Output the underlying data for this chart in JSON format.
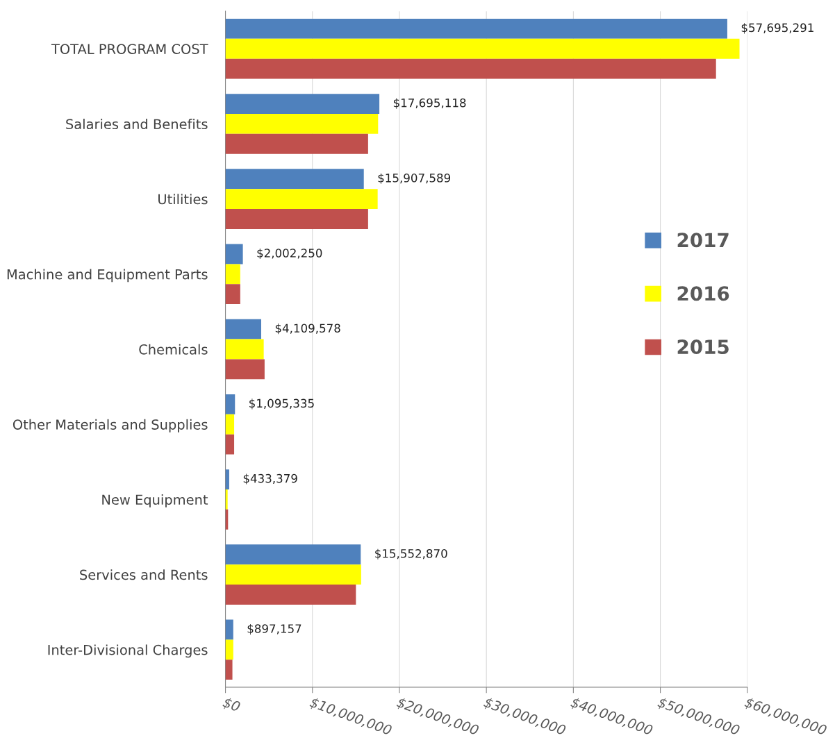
{
  "chart_data": {
    "type": "bar",
    "orientation": "horizontal",
    "categories": [
      "TOTAL PROGRAM COST",
      "Salaries and Benefits",
      "Utilities",
      "Machine and Equipment Parts",
      "Chemicals",
      "Other Materials and Supplies",
      "New Equipment",
      "Services and Rents",
      "Inter-Divisional Charges"
    ],
    "series": [
      {
        "name": "2017",
        "color": "#4f81bd",
        "values": [
          57695291,
          17695118,
          15907589,
          2002250,
          4109578,
          1095335,
          433379,
          15552870,
          897157
        ],
        "value_labels": [
          "$57,695,291",
          "$17,695,118",
          "$15,907,589",
          "$2,002,250",
          "$4,109,578",
          "$1,095,335",
          "$433,379",
          "$15,552,870",
          "$897,157"
        ]
      },
      {
        "name": "2016",
        "color": "#ffff00",
        "values": [
          59100000,
          17550000,
          17500000,
          1700000,
          4400000,
          1000000,
          250000,
          15600000,
          900000
        ]
      },
      {
        "name": "2015",
        "color": "#c0504d",
        "values": [
          56400000,
          16400000,
          16400000,
          1700000,
          4500000,
          1000000,
          300000,
          15000000,
          800000
        ]
      }
    ],
    "xlim": [
      0,
      60000000
    ],
    "xticks": [
      {
        "value": 0,
        "label": "$0"
      },
      {
        "value": 10000000,
        "label": "$10,000,000"
      },
      {
        "value": 20000000,
        "label": "$20,000,000"
      },
      {
        "value": 30000000,
        "label": "$30,000,000"
      },
      {
        "value": 40000000,
        "label": "$40,000,000"
      },
      {
        "value": 50000000,
        "label": "$50,000,000"
      },
      {
        "value": 60000000,
        "label": "$60,000,000"
      }
    ],
    "grid": "x",
    "legend": "right"
  }
}
